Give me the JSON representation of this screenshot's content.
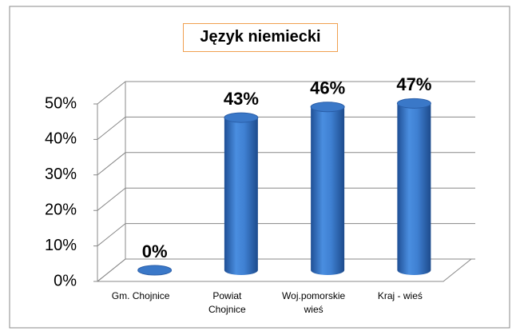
{
  "chart_data": {
    "type": "bar",
    "title": "Język niemiecki",
    "categories": [
      "Gm. Chojnice",
      "Powiat Chojnice",
      "Woj.pomorskie wieś",
      "Kraj - wieś"
    ],
    "values": [
      0,
      43,
      46,
      47
    ],
    "value_labels": [
      "0%",
      "43%",
      "46%",
      "47%"
    ],
    "color": "#2e6fc0",
    "ylim": [
      0,
      50
    ],
    "yticks": [
      {
        "value": 0,
        "label": "0%"
      },
      {
        "value": 10,
        "label": "10%"
      },
      {
        "value": 20,
        "label": "20%"
      },
      {
        "value": 30,
        "label": "30%"
      },
      {
        "value": 40,
        "label": "40%"
      },
      {
        "value": 50,
        "label": "50%"
      }
    ],
    "grid": true
  }
}
